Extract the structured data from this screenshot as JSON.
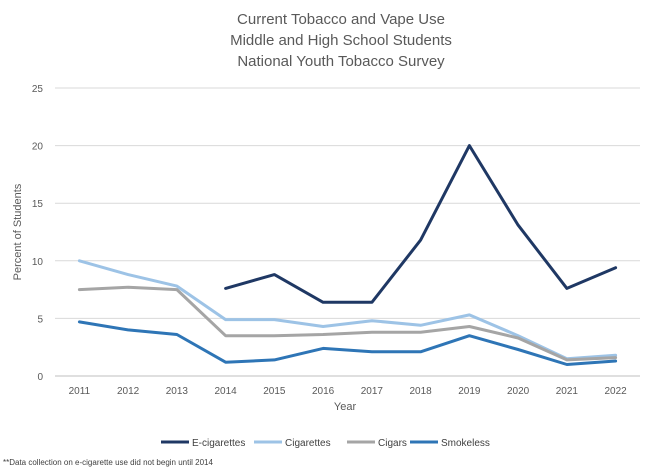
{
  "chart_data": {
    "type": "line",
    "title": [
      "Current Tobacco and Vape Use",
      "Middle and High School Students",
      "National Youth Tobacco Survey"
    ],
    "xlabel": "Year",
    "ylabel": "Percent of Students",
    "ylim": [
      0,
      25
    ],
    "yticks": [
      "0",
      "5",
      "10",
      "15",
      "20",
      "25"
    ],
    "categories": [
      "2011",
      "2012",
      "2013",
      "2014",
      "2015",
      "2016",
      "2017",
      "2018",
      "2019",
      "2020",
      "2021",
      "2022"
    ],
    "grid": true,
    "legend_position": "bottom",
    "series": [
      {
        "name": "E-cigarettes",
        "color": "#1f3864",
        "values": [
          null,
          null,
          null,
          7.6,
          8.8,
          6.4,
          6.4,
          11.8,
          20.0,
          13.1,
          7.6,
          9.4
        ]
      },
      {
        "name": "Cigarettes",
        "color": "#9dc3e6",
        "values": [
          10.0,
          8.8,
          7.8,
          4.9,
          4.9,
          4.3,
          4.8,
          4.4,
          5.3,
          3.5,
          1.5,
          1.8
        ]
      },
      {
        "name": "Cigars",
        "color": "#a5a5a5",
        "values": [
          7.5,
          7.7,
          7.5,
          3.5,
          3.5,
          3.6,
          3.8,
          3.8,
          4.3,
          3.3,
          1.4,
          1.6
        ]
      },
      {
        "name": "Smokeless",
        "color": "#2e75b6",
        "values": [
          4.7,
          4.0,
          3.6,
          1.2,
          1.4,
          2.4,
          2.1,
          2.1,
          3.5,
          2.3,
          1.0,
          1.3
        ]
      }
    ],
    "footnote": "**Data collection on e-cigarette use did not begin until 2014"
  }
}
